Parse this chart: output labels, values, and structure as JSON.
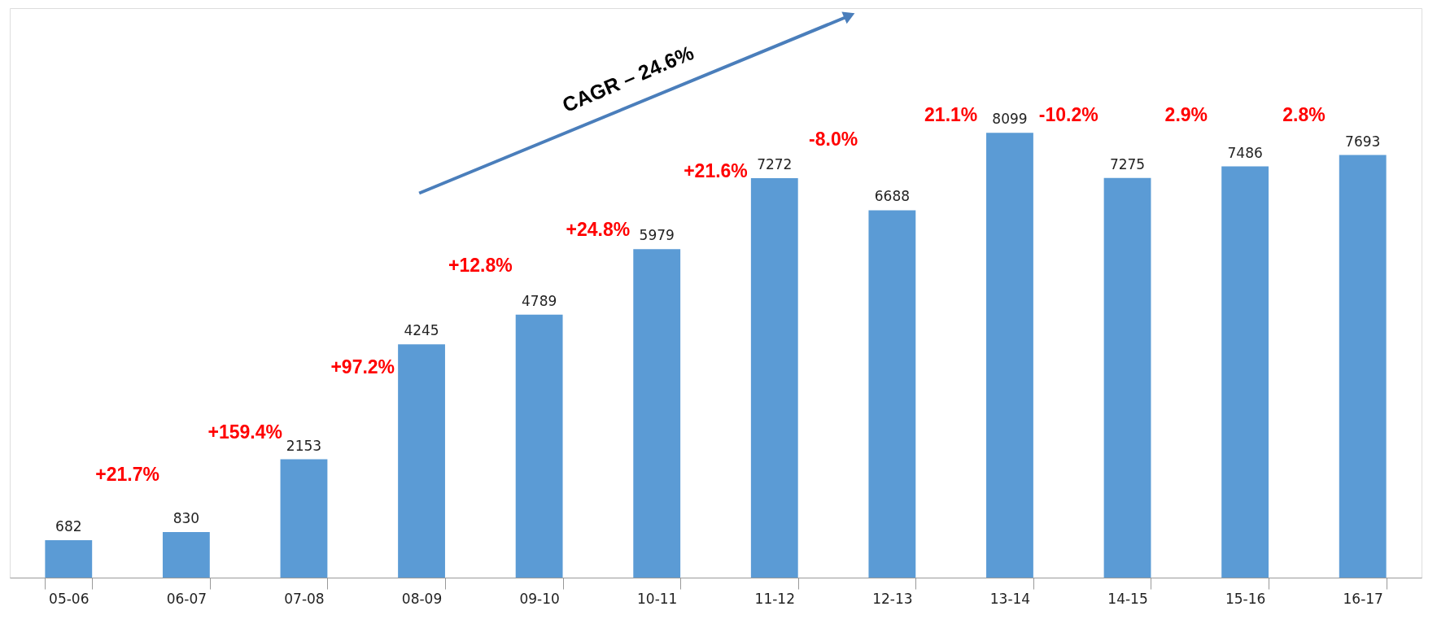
{
  "chart_data": {
    "type": "bar",
    "categories": [
      "05-06",
      "06-07",
      "07-08",
      "08-09",
      "09-10",
      "10-11",
      "11-12",
      "12-13",
      "13-14",
      "14-15",
      "15-16",
      "16-17"
    ],
    "values": [
      682,
      830,
      2153,
      4245,
      4789,
      5979,
      7272,
      6688,
      8099,
      7275,
      7486,
      7693
    ],
    "color": "#5b9bd5",
    "data_labels": true,
    "grid": false,
    "tick_labels": "x",
    "annotations": [
      "+21.7%",
      "+159.4%",
      "+97.2%",
      "+12.8%",
      "+24.8%",
      "+21.6%",
      "-8.0%",
      "21.1%",
      "-10.2%",
      "2.9%",
      "2.8%",
      "CAGR – 24.6%"
    ]
  }
}
